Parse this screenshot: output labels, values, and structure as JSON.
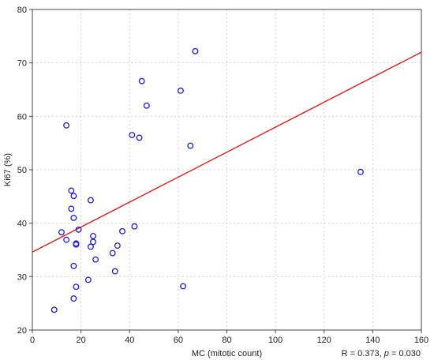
{
  "chart_data": {
    "type": "scatter",
    "xlabel": "MC (mitotic count)",
    "ylabel": "Ki67 (%)",
    "xlim": [
      0,
      160
    ],
    "ylim": [
      20,
      80
    ],
    "xticks": [
      0,
      20,
      40,
      60,
      80,
      100,
      120,
      140,
      160
    ],
    "yticks": [
      20,
      30,
      40,
      50,
      60,
      70,
      80
    ],
    "xtick_labels": [
      "0",
      "20",
      "40",
      "60",
      "80",
      "100",
      "120",
      "140",
      "160"
    ],
    "ytick_labels": [
      "20",
      "30",
      "40",
      "50",
      "60",
      "70",
      "80"
    ],
    "grid": true,
    "marker_color": "#1f1fc8",
    "line_color": "#d62020",
    "points": [
      {
        "x": 67,
        "y": 72.2
      },
      {
        "x": 45,
        "y": 66.6
      },
      {
        "x": 61,
        "y": 64.8
      },
      {
        "x": 47,
        "y": 62.0
      },
      {
        "x": 14,
        "y": 58.3
      },
      {
        "x": 41,
        "y": 56.5
      },
      {
        "x": 44,
        "y": 56.0
      },
      {
        "x": 65,
        "y": 54.5
      },
      {
        "x": 135,
        "y": 49.6
      },
      {
        "x": 16,
        "y": 46.1
      },
      {
        "x": 17,
        "y": 45.1
      },
      {
        "x": 24,
        "y": 44.3
      },
      {
        "x": 16,
        "y": 42.7
      },
      {
        "x": 17,
        "y": 41.0
      },
      {
        "x": 42,
        "y": 39.4
      },
      {
        "x": 19,
        "y": 38.8
      },
      {
        "x": 37,
        "y": 38.5
      },
      {
        "x": 12,
        "y": 38.3
      },
      {
        "x": 25,
        "y": 37.6
      },
      {
        "x": 14,
        "y": 36.9
      },
      {
        "x": 25,
        "y": 36.5
      },
      {
        "x": 18,
        "y": 36.2
      },
      {
        "x": 18,
        "y": 36.0
      },
      {
        "x": 24,
        "y": 35.6
      },
      {
        "x": 35,
        "y": 35.8
      },
      {
        "x": 33,
        "y": 34.4
      },
      {
        "x": 26,
        "y": 33.2
      },
      {
        "x": 17,
        "y": 32.0
      },
      {
        "x": 34,
        "y": 31.0
      },
      {
        "x": 23,
        "y": 29.4
      },
      {
        "x": 62,
        "y": 28.2
      },
      {
        "x": 18,
        "y": 28.1
      },
      {
        "x": 17,
        "y": 25.9
      },
      {
        "x": 9,
        "y": 23.8
      }
    ],
    "regression": {
      "x1": 0,
      "y1": 34.6,
      "x2": 160,
      "y2": 72.0
    },
    "stats": {
      "r_text": "R = 0.373, ",
      "p_symbol": "p",
      "p_text": " = 0.030"
    }
  }
}
